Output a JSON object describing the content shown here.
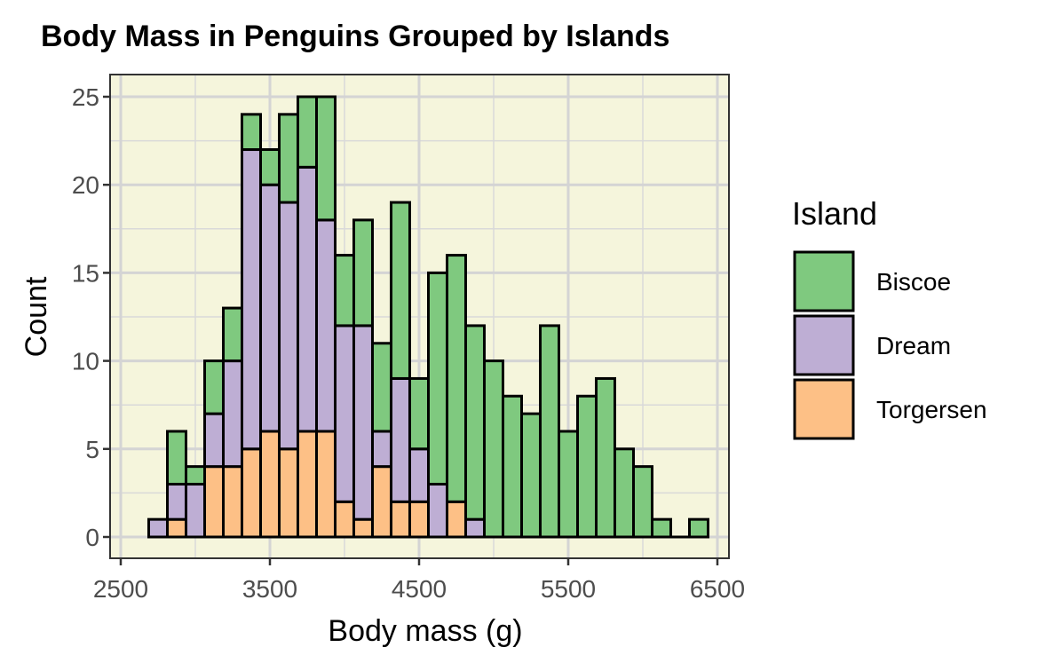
{
  "chart_data": {
    "type": "bar",
    "stacked": true,
    "title": "Body Mass in Penguins Grouped by Islands",
    "xlabel": "Body mass (g)",
    "ylabel": "Count",
    "xlim": [
      2500,
      6500
    ],
    "ylim": [
      0,
      25
    ],
    "xticks": [
      "2500",
      "3500",
      "4500",
      "5500",
      "6500"
    ],
    "yticks": [
      "0",
      "5",
      "10",
      "15",
      "20",
      "25"
    ],
    "bin_width": 125,
    "bin_centers": [
      2750,
      2875,
      3000,
      3125,
      3250,
      3375,
      3500,
      3625,
      3750,
      3875,
      4000,
      4125,
      4250,
      4375,
      4500,
      4625,
      4750,
      4875,
      5000,
      5125,
      5250,
      5375,
      5500,
      5625,
      5750,
      5875,
      6000,
      6125,
      6250,
      6375
    ],
    "series": [
      {
        "name": "Torgersen",
        "color": "#FDC086",
        "values": [
          0,
          1,
          0,
          4,
          4,
          5,
          6,
          5,
          6,
          6,
          2,
          1,
          4,
          2,
          2,
          0,
          2,
          0,
          0,
          0,
          0,
          0,
          0,
          0,
          0,
          0,
          0,
          0,
          0,
          0
        ]
      },
      {
        "name": "Dream",
        "color": "#BEAED4",
        "values": [
          1,
          2,
          3,
          3,
          6,
          17,
          14,
          14,
          15,
          12,
          10,
          11,
          2,
          7,
          3,
          3,
          0,
          1,
          0,
          0,
          0,
          0,
          0,
          0,
          0,
          0,
          0,
          0,
          0,
          0
        ]
      },
      {
        "name": "Biscoe",
        "color": "#7FC97F",
        "values": [
          0,
          3,
          1,
          3,
          3,
          2,
          2,
          5,
          4,
          7,
          4,
          6,
          5,
          10,
          4,
          12,
          14,
          11,
          10,
          8,
          7,
          12,
          6,
          8,
          9,
          5,
          4,
          1,
          0,
          1
        ]
      }
    ],
    "legend": {
      "title": "Island",
      "position": "right",
      "entries": [
        {
          "label": "Biscoe",
          "color": "#7FC97F"
        },
        {
          "label": "Dream",
          "color": "#BEAED4"
        },
        {
          "label": "Torgersen",
          "color": "#FDC086"
        }
      ]
    },
    "panel_background": "#F5F5DC",
    "grid": true
  }
}
